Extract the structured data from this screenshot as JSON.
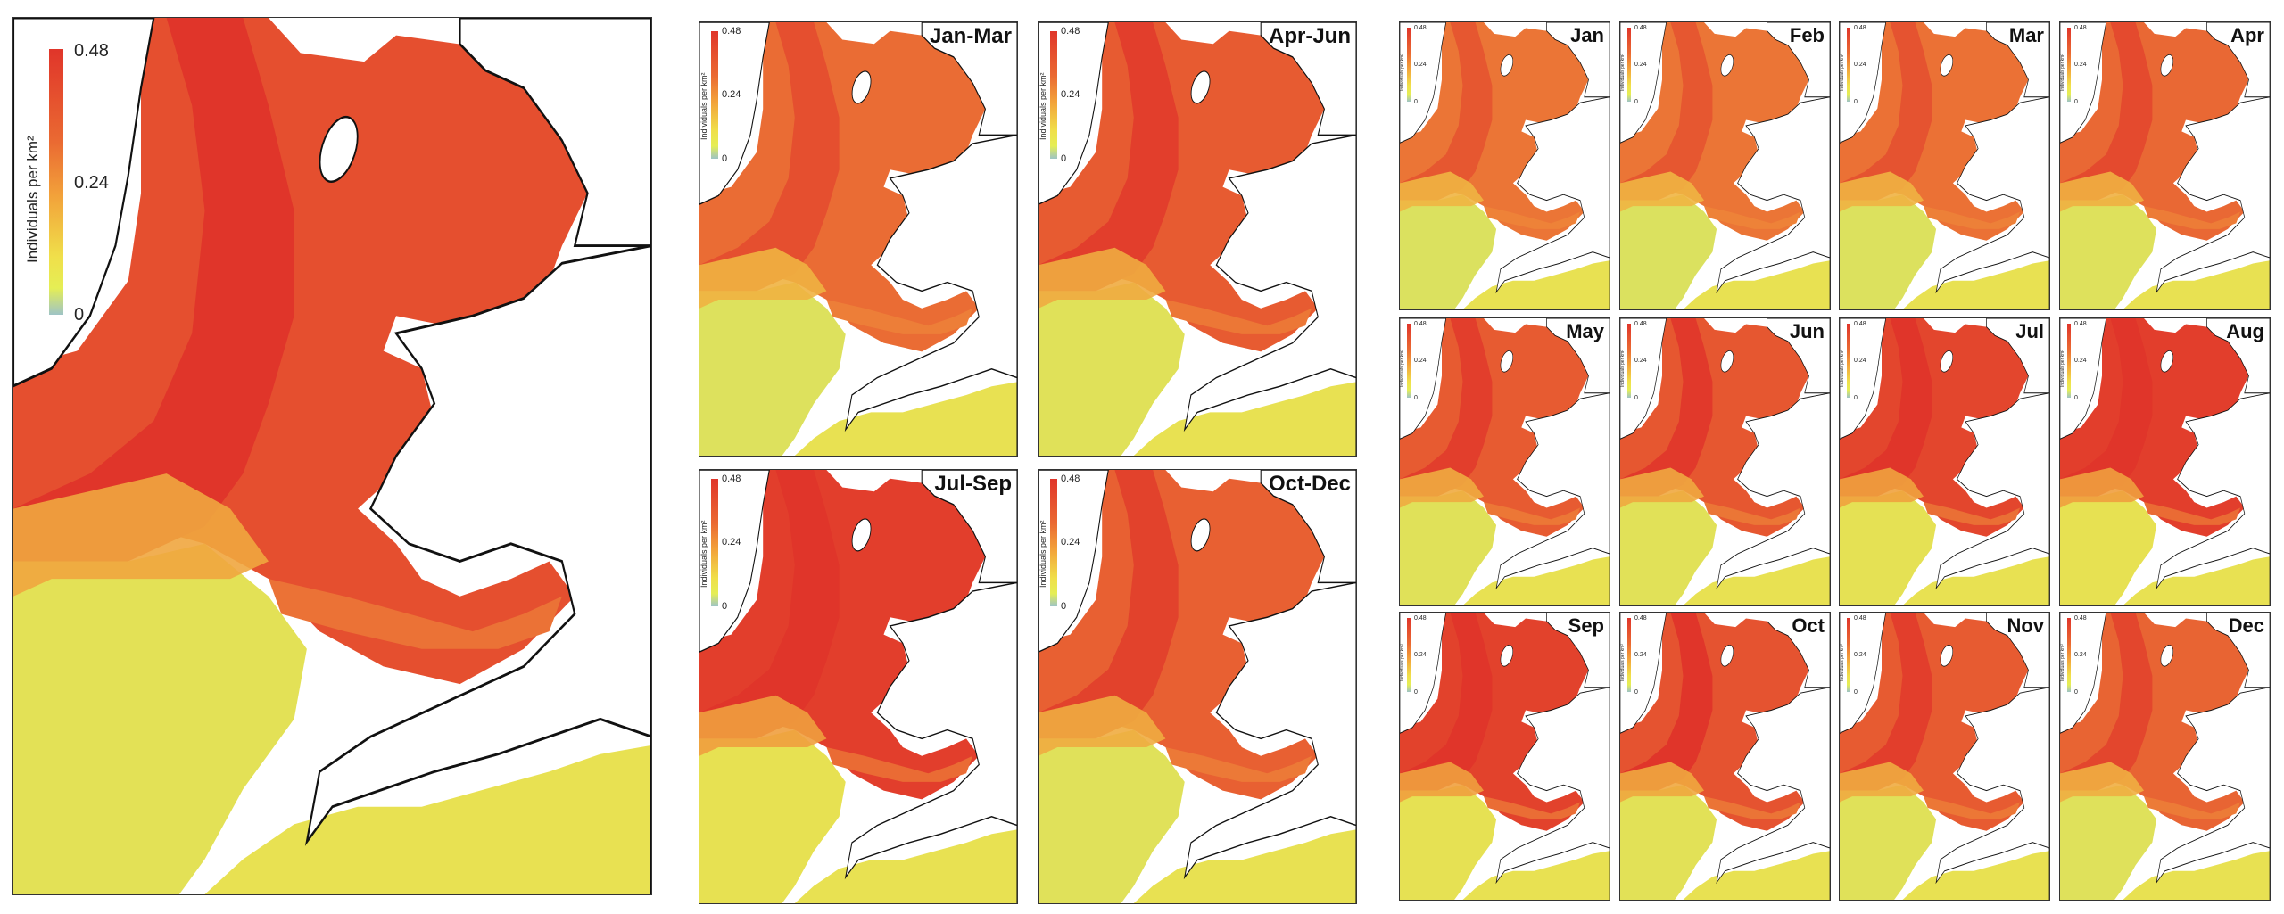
{
  "legend": {
    "max_label": "0.48",
    "mid_label": "0.24",
    "min_label": "0",
    "unit_label": "Individuals per km²",
    "range": [
      0,
      0.48
    ],
    "colors": [
      "#e0352a",
      "#ea6a32",
      "#f2a13a",
      "#f0df4a",
      "#e5ee55",
      "#9ec4c6"
    ]
  },
  "annual_map": {
    "label": ""
  },
  "seasonal_maps": [
    {
      "label": "Jan-Mar",
      "intensity": 0.35
    },
    {
      "label": "Apr-Jun",
      "intensity": 0.55
    },
    {
      "label": "Jul-Sep",
      "intensity": 0.9
    },
    {
      "label": "Oct-Dec",
      "intensity": 0.5
    }
  ],
  "monthly_maps": [
    {
      "label": "Jan",
      "intensity": 0.25
    },
    {
      "label": "Feb",
      "intensity": 0.25
    },
    {
      "label": "Mar",
      "intensity": 0.3
    },
    {
      "label": "Apr",
      "intensity": 0.4
    },
    {
      "label": "May",
      "intensity": 0.55
    },
    {
      "label": "Jun",
      "intensity": 0.6
    },
    {
      "label": "Jul",
      "intensity": 0.8
    },
    {
      "label": "Aug",
      "intensity": 0.9
    },
    {
      "label": "Sep",
      "intensity": 0.85
    },
    {
      "label": "Oct",
      "intensity": 0.65
    },
    {
      "label": "Nov",
      "intensity": 0.55
    },
    {
      "label": "Dec",
      "intensity": 0.45
    }
  ],
  "colors": {
    "land": "#ffffff",
    "coast": "#111111",
    "sea_high": "#e0352a",
    "sea_mid": "#ef8a3a",
    "sea_low": "#f0e04a",
    "sea_offshore": "#cfe26a"
  }
}
